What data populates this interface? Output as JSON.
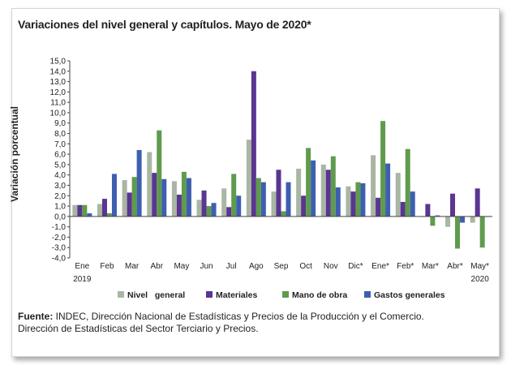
{
  "title": "Variaciones del nivel general y capítulos. Mayo de 2020*",
  "source": {
    "label": "Fuente:",
    "line1": " INDEC, Dirección Nacional de Estadísticas y Precios de la Producción y el Comercio.",
    "line2": "Dirección de Estadísticas del Sector Terciario y Precios."
  },
  "chart_data": {
    "type": "bar",
    "ylabel": "Variación porcentual",
    "xlabel": "",
    "ylim": [
      -4,
      15
    ],
    "yticks": [
      "15,0",
      "14,0",
      "13,0",
      "12,0",
      "11,0",
      "10,0",
      "9,0",
      "8,0",
      "7,0",
      "6,0",
      "5,0",
      "4,0",
      "3,0",
      "2,0",
      "1,0",
      "0,0",
      "-1,0",
      "-2,0",
      "-3,0",
      "-4,0"
    ],
    "categories": [
      "Ene",
      "Feb",
      "Mar",
      "Abr",
      "May",
      "Jun",
      "Jul",
      "Ago",
      "Sep",
      "Oct",
      "Nov",
      "Dic*",
      "Ene*",
      "Feb*",
      "Mar*",
      "Abr*",
      "May*"
    ],
    "year_labels": {
      "first": "2019",
      "last": "2020"
    },
    "grid": false,
    "legend_position": "bottom",
    "colors": [
      "#a9b6a3",
      "#5a3591",
      "#5f9b4c",
      "#3e5fb0"
    ],
    "series": [
      {
        "name": "Nivel   general",
        "values": [
          1.1,
          1.2,
          3.5,
          6.2,
          3.4,
          1.6,
          2.7,
          7.4,
          2.4,
          4.6,
          5.0,
          2.9,
          5.9,
          4.2,
          0.0,
          -1.0,
          -0.6
        ]
      },
      {
        "name": "Materiales",
        "values": [
          1.1,
          1.7,
          2.3,
          4.2,
          2.1,
          2.5,
          0.9,
          14.0,
          4.5,
          2.0,
          4.5,
          2.4,
          1.8,
          1.4,
          1.2,
          2.2,
          2.7
        ]
      },
      {
        "name": "Mano de obra",
        "values": [
          1.1,
          0.3,
          3.8,
          8.3,
          4.3,
          1.0,
          4.1,
          3.7,
          0.5,
          6.6,
          5.8,
          3.3,
          9.2,
          6.5,
          -0.9,
          -3.1,
          -3.0
        ]
      },
      {
        "name": "Gastos generales",
        "values": [
          0.3,
          4.1,
          6.4,
          3.6,
          3.7,
          1.3,
          2.0,
          3.3,
          3.3,
          5.4,
          2.8,
          3.2,
          5.1,
          2.4,
          0.1,
          -0.6,
          0.0
        ]
      }
    ]
  }
}
